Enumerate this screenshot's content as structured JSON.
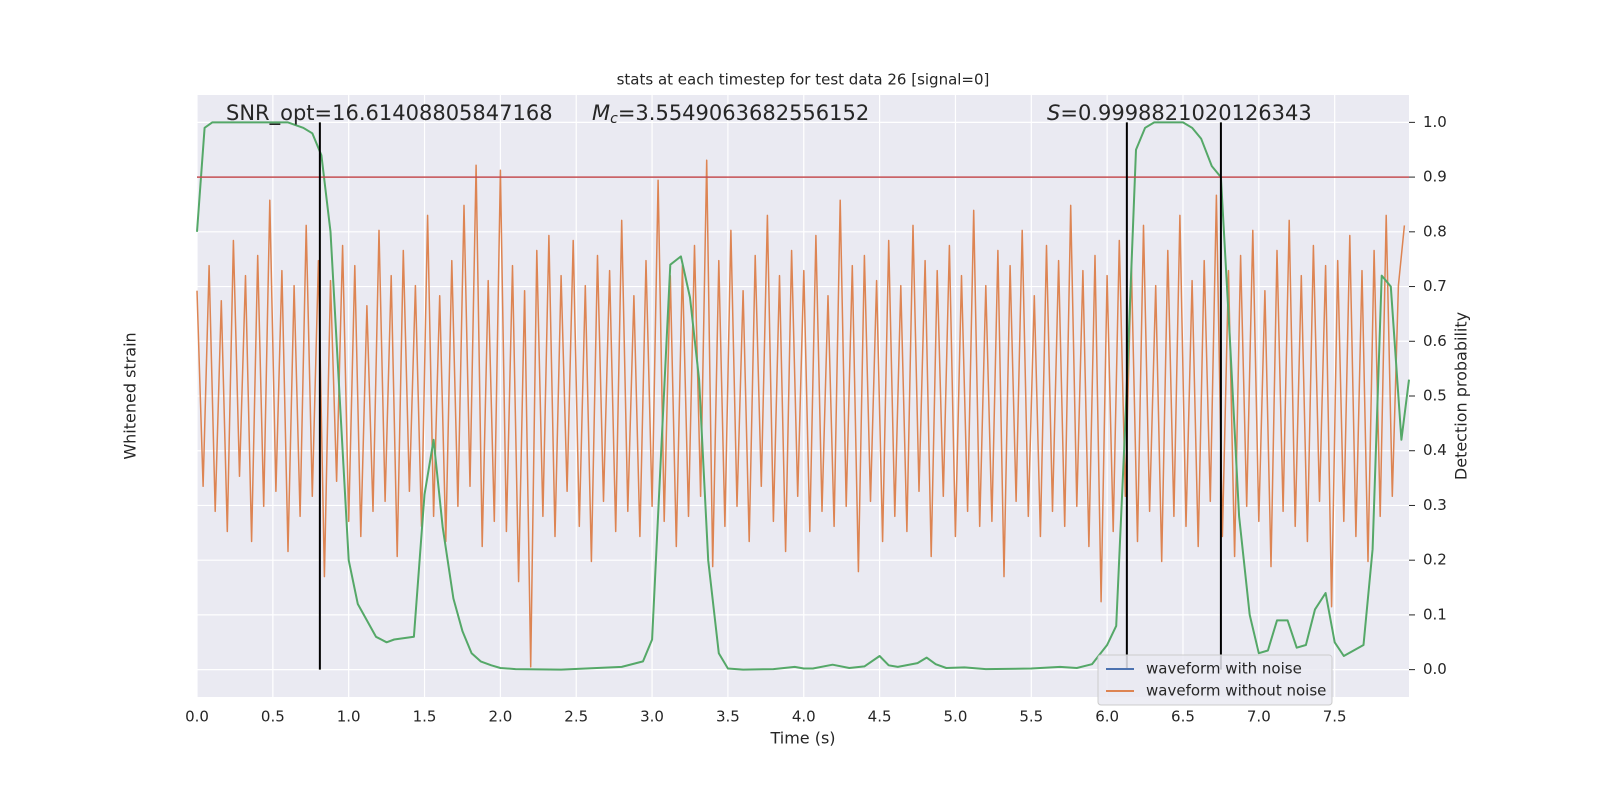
{
  "chart_data": {
    "type": "line",
    "title": "stats at each timestep for test data 26 [signal=0]",
    "annotations": [
      {
        "text": "SNR_opt=16.61408805847168"
      },
      {
        "symbol": "M",
        "sub": "c",
        "text": "=3.5549063682556152"
      },
      {
        "symbol": "S",
        "text": "=0.9998821020126343"
      }
    ],
    "xlabel": "Time (s)",
    "ylabel": "Whitened strain",
    "y2label": "Detection probability",
    "xlim": [
      0,
      7.99
    ],
    "xticks": [
      {
        "value": 0,
        "label": "0.0"
      },
      0.5,
      {
        "value": 1,
        "label": "1.0"
      },
      1.5,
      {
        "value": 2,
        "label": "2.0"
      },
      2.5,
      {
        "value": 3,
        "label": "3.0"
      },
      3.5,
      {
        "value": 4,
        "label": "4.0"
      },
      4.5,
      {
        "value": 5,
        "label": "5.0"
      },
      5.5,
      {
        "value": 6,
        "label": "6.0"
      },
      6.5,
      {
        "value": 7,
        "label": "7.0"
      },
      7.5
    ],
    "ylim": [
      -6,
      6
    ],
    "y2lim": [
      -0.05,
      1.05
    ],
    "y2ticks": [
      {
        "value": 0,
        "label": "0.0"
      },
      0.1,
      0.2,
      0.3,
      0.4,
      0.5,
      0.6,
      0.7,
      0.8,
      0.9,
      {
        "value": 1,
        "label": "1.0"
      }
    ],
    "grid": true,
    "legend": "lower right",
    "series": [
      {
        "name": "waveform with noise",
        "color": "#4c72b0"
      },
      {
        "name": "waveform without noise",
        "color": "#dd8452",
        "x": [
          0,
          0.04,
          0.08,
          0.12,
          0.16,
          0.2,
          0.24,
          0.28,
          0.32,
          0.36,
          0.4,
          0.44,
          0.48,
          0.52,
          0.56,
          0.6,
          0.64,
          0.68,
          0.72,
          0.76,
          0.8,
          0.84,
          0.88,
          0.92,
          0.96,
          1,
          1.04,
          1.08,
          1.12,
          1.16,
          1.2,
          1.24,
          1.28,
          1.32,
          1.36,
          1.4,
          1.44,
          1.48,
          1.52,
          1.56,
          1.6,
          1.64,
          1.68,
          1.72,
          1.76,
          1.8,
          1.84,
          1.88,
          1.92,
          1.96,
          2,
          2.04,
          2.08,
          2.12,
          2.16,
          2.2,
          2.24,
          2.28,
          2.32,
          2.36,
          2.4,
          2.44,
          2.48,
          2.52,
          2.56,
          2.6,
          2.64,
          2.68,
          2.72,
          2.76,
          2.8,
          2.84,
          2.88,
          2.92,
          2.96,
          3,
          3.04,
          3.08,
          3.12,
          3.16,
          3.2,
          3.24,
          3.28,
          3.32,
          3.36,
          3.4,
          3.44,
          3.48,
          3.52,
          3.56,
          3.6,
          3.64,
          3.68,
          3.72,
          3.76,
          3.8,
          3.84,
          3.88,
          3.92,
          3.96,
          4,
          4.04,
          4.08,
          4.12,
          4.16,
          4.2,
          4.24,
          4.28,
          4.32,
          4.36,
          4.4,
          4.44,
          4.48,
          4.52,
          4.56,
          4.6,
          4.64,
          4.68,
          4.72,
          4.76,
          4.8,
          4.84,
          4.88,
          4.92,
          4.96,
          5,
          5.04,
          5.08,
          5.12,
          5.16,
          5.2,
          5.24,
          5.28,
          5.32,
          5.36,
          5.4,
          5.44,
          5.48,
          5.52,
          5.56,
          5.6,
          5.64,
          5.68,
          5.72,
          5.76,
          5.8,
          5.84,
          5.88,
          5.92,
          5.96,
          6,
          6.04,
          6.08,
          6.12,
          6.16,
          6.2,
          6.24,
          6.28,
          6.32,
          6.36,
          6.4,
          6.44,
          6.48,
          6.52,
          6.56,
          6.6,
          6.64,
          6.68,
          6.72,
          6.76,
          6.8,
          6.84,
          6.88,
          6.92,
          6.96,
          7,
          7.04,
          7.08,
          7.12,
          7.16,
          7.2,
          7.24,
          7.28,
          7.32,
          7.36,
          7.4,
          7.44,
          7.48,
          7.52,
          7.56,
          7.6,
          7.64,
          7.68,
          7.72,
          7.76,
          7.8,
          7.84,
          7.88,
          7.92,
          7.96
        ],
        "values": [
          2.1,
          -1.8,
          2.6,
          -2.3,
          1.9,
          -2.7,
          3.1,
          -1.6,
          2.4,
          -2.9,
          2.8,
          -2.2,
          3.9,
          -1.9,
          2.5,
          -3.1,
          2.2,
          -2.4,
          3.4,
          -2.0,
          2.7,
          -3.6,
          2.3,
          -1.7,
          3.0,
          -2.5,
          2.6,
          -2.8,
          1.8,
          -2.3,
          3.3,
          -2.1,
          2.4,
          -3.2,
          2.9,
          -1.9,
          2.2,
          -2.6,
          3.6,
          -2.4,
          2.0,
          -2.9,
          2.7,
          -2.2,
          3.8,
          -1.8,
          4.6,
          -3.0,
          2.3,
          -2.5,
          4.5,
          -2.7,
          2.6,
          -3.7,
          2.1,
          -5.4,
          2.9,
          -2.4,
          3.2,
          -2.8,
          2.4,
          -1.9,
          3.1,
          -2.6,
          2.2,
          -3.3,
          2.8,
          -2.1,
          2.5,
          -2.7,
          3.5,
          -2.3,
          2.0,
          -2.8,
          2.7,
          -2.2,
          4.3,
          -2.5,
          2.4,
          -3.0,
          2.6,
          -2.4,
          3.0,
          -2.0,
          4.7,
          -3.4,
          2.7,
          -2.6,
          3.3,
          -2.2,
          2.1,
          -2.9,
          2.8,
          -1.8,
          3.6,
          -2.5,
          2.4,
          -3.1,
          2.9,
          -2.0,
          2.5,
          -2.7,
          3.2,
          -2.3,
          2.0,
          -2.6,
          3.9,
          -2.2,
          2.6,
          -3.5,
          2.8,
          -2.1,
          2.3,
          -2.9,
          3.1,
          -2.4,
          2.2,
          -2.7,
          3.4,
          -1.9,
          2.7,
          -3.2,
          2.5,
          -2.0,
          3.0,
          -2.8,
          2.4,
          -2.3,
          3.7,
          -2.6,
          2.2,
          -2.5,
          2.9,
          -3.6,
          2.6,
          -2.1,
          3.3,
          -2.4,
          2.0,
          -2.8,
          3.0,
          -2.3,
          2.7,
          -2.6,
          3.8,
          -2.2,
          2.5,
          -3.0,
          2.8,
          -4.1,
          2.4,
          -2.7,
          3.1,
          -2.0,
          2.6,
          -2.9,
          3.4,
          -2.3,
          2.2,
          -3.3,
          2.9,
          -2.4,
          3.6,
          -2.6,
          2.3,
          -3.0,
          2.7,
          -2.1,
          4.0,
          -2.8,
          2.5,
          -3.2,
          2.8,
          -2.2,
          3.3,
          -2.5,
          2.1,
          -3.4,
          2.9,
          -2.3,
          3.5,
          -2.6,
          2.4,
          -2.9,
          3.0,
          -2.1,
          2.6,
          -4.2,
          2.7,
          -2.5,
          3.2,
          -2.8,
          2.5,
          -3.3,
          2.9,
          -2.4,
          3.6,
          -2.0,
          2.2,
          3.4
        ]
      }
    ],
    "probability": {
      "color": "#55a868",
      "axis": "y2",
      "x": [
        0,
        0.05,
        0.1,
        0.2,
        0.3,
        0.4,
        0.5,
        0.6,
        0.7,
        0.76,
        0.82,
        0.88,
        0.94,
        1.0,
        1.06,
        1.12,
        1.18,
        1.25,
        1.3,
        1.43,
        1.5,
        1.56,
        1.62,
        1.69,
        1.75,
        1.81,
        1.87,
        1.94,
        2.0,
        2.1,
        2.4,
        2.8,
        2.94,
        3.0,
        3.06,
        3.12,
        3.19,
        3.25,
        3.31,
        3.37,
        3.44,
        3.5,
        3.6,
        3.8,
        3.94,
        4.0,
        4.06,
        4.19,
        4.3,
        4.4,
        4.5,
        4.56,
        4.62,
        4.75,
        4.81,
        4.87,
        4.94,
        5.06,
        5.2,
        5.5,
        5.69,
        5.8,
        5.9,
        6.0,
        6.06,
        6.12,
        6.19,
        6.25,
        6.31,
        6.5,
        6.56,
        6.62,
        6.69,
        6.75,
        6.81,
        6.87,
        6.94,
        7.0,
        7.06,
        7.12,
        7.19,
        7.25,
        7.31,
        7.37,
        7.44,
        7.5,
        7.56,
        7.69,
        7.75,
        7.81,
        7.87,
        7.94,
        7.99
      ],
      "values": [
        0.8,
        0.99,
        1.0,
        1.0,
        1.0,
        1.0,
        1.0,
        1.0,
        0.99,
        0.98,
        0.94,
        0.8,
        0.5,
        0.2,
        0.12,
        0.09,
        0.06,
        0.05,
        0.055,
        0.06,
        0.32,
        0.42,
        0.26,
        0.13,
        0.07,
        0.03,
        0.015,
        0.008,
        0.003,
        0.001,
        0.0,
        0.005,
        0.015,
        0.055,
        0.4,
        0.74,
        0.755,
        0.68,
        0.53,
        0.2,
        0.03,
        0.002,
        0.0,
        0.001,
        0.005,
        0.002,
        0.002,
        0.009,
        0.003,
        0.006,
        0.025,
        0.008,
        0.005,
        0.012,
        0.022,
        0.01,
        0.003,
        0.004,
        0.001,
        0.002,
        0.005,
        0.003,
        0.01,
        0.045,
        0.08,
        0.45,
        0.95,
        0.99,
        1.0,
        1.0,
        0.99,
        0.97,
        0.92,
        0.9,
        0.6,
        0.28,
        0.1,
        0.03,
        0.035,
        0.09,
        0.09,
        0.04,
        0.045,
        0.11,
        0.14,
        0.05,
        0.025,
        0.045,
        0.22,
        0.72,
        0.7,
        0.42,
        0.53
      ]
    },
    "threshold": {
      "value": 0.9,
      "color": "#c44e52"
    },
    "vlines": {
      "values": [
        0.81,
        6.13,
        6.75
      ],
      "color": "#000000"
    }
  }
}
